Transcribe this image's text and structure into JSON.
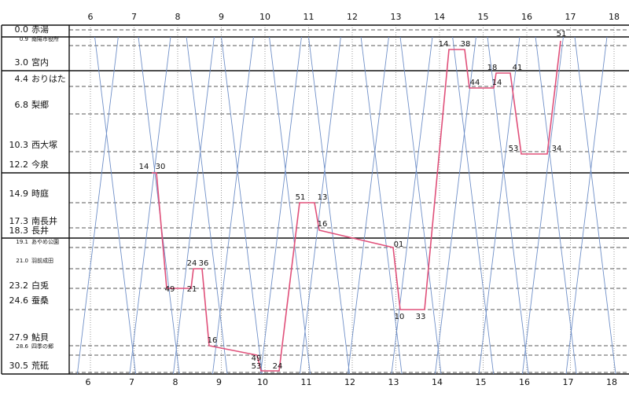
{
  "hours_top": [
    6,
    7,
    8,
    9,
    10,
    11,
    12,
    13,
    14,
    15,
    16,
    17,
    18
  ],
  "hours_bottom": [
    6,
    7,
    8,
    9,
    10,
    11,
    12,
    13,
    14,
    15,
    16,
    17,
    18
  ],
  "stations": [
    {
      "km": "0.0",
      "name": "赤湯"
    },
    {
      "km": "0.9",
      "name": "南陽市役所"
    },
    {
      "km": "3.0",
      "name": "宮内"
    },
    {
      "km": "4.4",
      "name": "おりはた"
    },
    {
      "km": "6.8",
      "name": "梨郷"
    },
    {
      "km": "10.3",
      "name": "西大塚"
    },
    {
      "km": "12.2",
      "name": "今泉"
    },
    {
      "km": "14.9",
      "name": "時庭"
    },
    {
      "km": "17.3",
      "name": "南長井"
    },
    {
      "km": "18.3",
      "name": "長井"
    },
    {
      "km": "19.1",
      "name": "あやめ公園"
    },
    {
      "km": "21.0",
      "name": "羽前成田"
    },
    {
      "km": "23.2",
      "name": "白兎"
    },
    {
      "km": "24.6",
      "name": "蚕桑"
    },
    {
      "km": "27.9",
      "name": "鮎貝"
    },
    {
      "km": "28.6",
      "name": "四季の郷"
    },
    {
      "km": "30.5",
      "name": "荒砥"
    }
  ],
  "minute_labels": [
    "14",
    "30",
    "49",
    "21",
    "24",
    "36",
    "16",
    "49",
    "53",
    "24",
    "51",
    "13",
    "16",
    "01",
    "10",
    "33",
    "14",
    "38",
    "44",
    "14",
    "18",
    "41",
    "53",
    "34",
    "51"
  ]
}
